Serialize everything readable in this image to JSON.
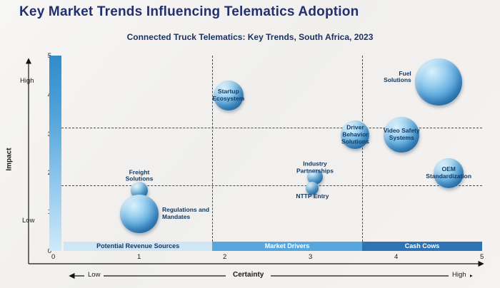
{
  "title": "Key Market Trends Influencing Telematics Adoption",
  "subtitle": "Connected Truck Telematics: Key Trends, South Africa, 2023",
  "colors": {
    "title_navy": "#24306e",
    "zone_light": "#cfe6f7",
    "zone_medium": "#58a6de",
    "zone_dark": "#2e74b5"
  },
  "chart_data": {
    "type": "bubble",
    "title": "Connected Truck Telematics: Key Trends, South Africa, 2023",
    "xlabel": "Certainty",
    "ylabel": "Impact",
    "xlim": [
      0,
      5
    ],
    "ylim": [
      0,
      5
    ],
    "x_ticks": [
      "0",
      "1",
      "2",
      "3",
      "4",
      "5"
    ],
    "y_ticks": [
      "0",
      "1",
      "2",
      "3",
      "4",
      "5"
    ],
    "x_end_labels": {
      "low": "Low",
      "high": "High"
    },
    "y_end_labels": {
      "low": "Low",
      "high": "High"
    },
    "grid": "dashed-quadrants",
    "quadrant_lines": {
      "vertical_x": [
        1.85,
        3.6
      ],
      "horizontal_y": [
        3.15,
        1.67
      ]
    },
    "bubble_color": "#4f9fd8",
    "zones": [
      {
        "label": "Potential Revenue Sources",
        "x_start": 0.12,
        "x_end": 1.85,
        "bg": "#cfe6f7",
        "fg": "#17375e"
      },
      {
        "label": "Market Drivers",
        "x_start": 1.85,
        "x_end": 3.6,
        "bg": "#58a6de",
        "fg": "#ffffff"
      },
      {
        "label": "Cash Cows",
        "x_start": 3.6,
        "x_end": 5,
        "bg": "#2e74b5",
        "fg": "#ffffff"
      }
    ],
    "bubbles": [
      {
        "label": [
          "Startup",
          "Ecosystem"
        ],
        "x": 2.04,
        "y": 3.97,
        "r": 21,
        "label_pos": "center"
      },
      {
        "label": [
          "Fuel",
          "Solutions"
        ],
        "x": 4.49,
        "y": 4.33,
        "r": 33,
        "label_pos": "left",
        "label_dy": -6
      },
      {
        "label": [
          "Driver",
          "Behavior",
          "Solutions"
        ],
        "x": 3.52,
        "y": 2.97,
        "r": 20,
        "label_pos": "center"
      },
      {
        "label": [
          "Video Safety",
          "Systems"
        ],
        "x": 4.06,
        "y": 2.97,
        "r": 25,
        "label_pos": "center"
      },
      {
        "label": [
          "OEM",
          "Standardization"
        ],
        "x": 4.61,
        "y": 1.98,
        "r": 21,
        "label_pos": "center"
      },
      {
        "label": [
          "Industry",
          "Partnerships"
        ],
        "x": 3.05,
        "y": 1.9,
        "r": 11,
        "label_pos": "above",
        "label_dy": 6
      },
      {
        "label": [
          "NTTP Entry"
        ],
        "x": 3.02,
        "y": 1.6,
        "r": 9,
        "label_pos": "below"
      },
      {
        "label": [
          "Freight",
          "Solutions"
        ],
        "x": 1.0,
        "y": 1.56,
        "r": 12,
        "label_pos": "above"
      },
      {
        "label": [
          "Regulations and",
          "Mandates"
        ],
        "x": 1.0,
        "y": 0.95,
        "r": 27,
        "label_pos": "right"
      }
    ]
  }
}
